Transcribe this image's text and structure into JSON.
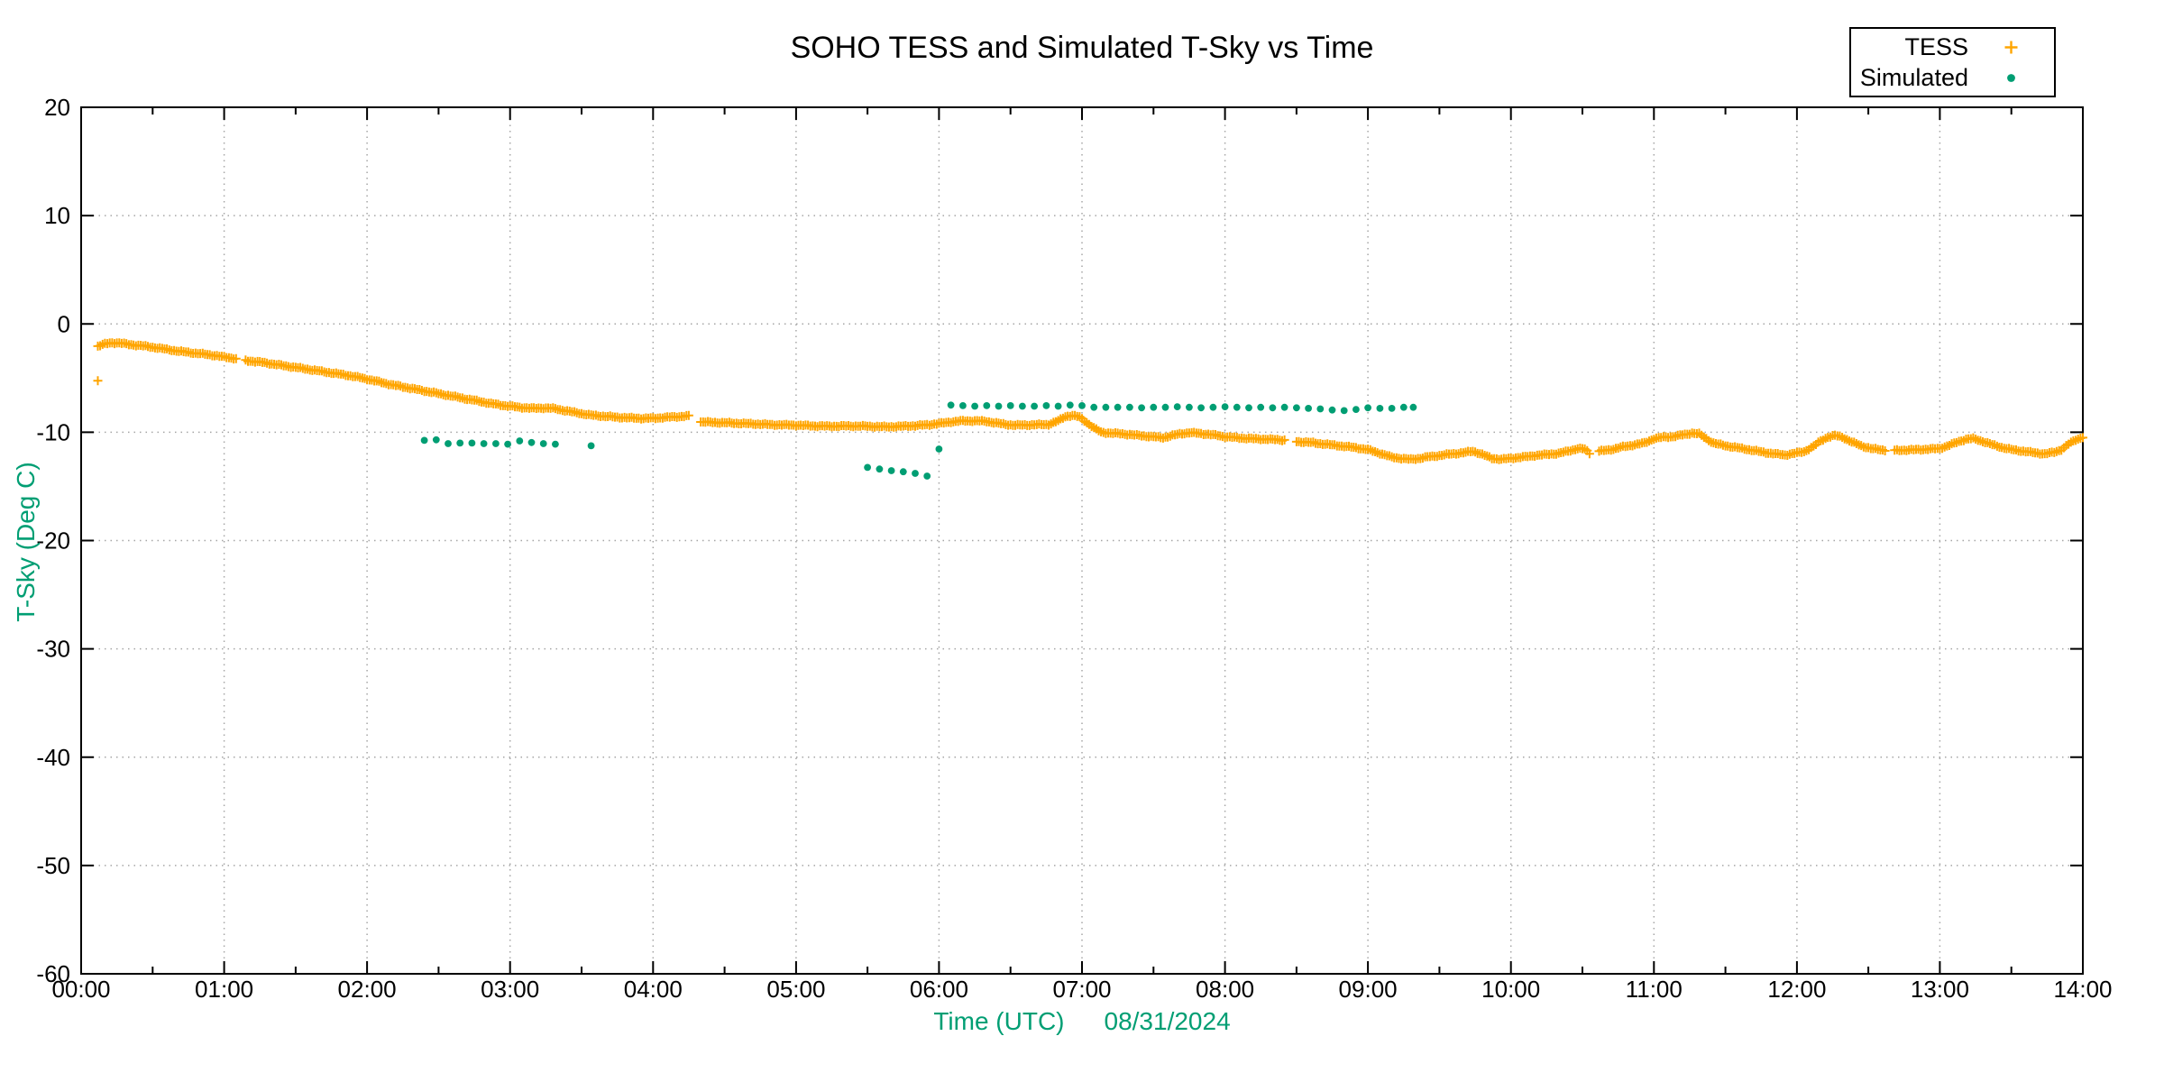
{
  "title": "SOHO TESS and Simulated T-Sky vs Time",
  "legend": {
    "entries": [
      {
        "label": "TESS",
        "marker": "plus-icon",
        "color": "#FFA500"
      },
      {
        "label": "Simulated",
        "marker": "dot-icon",
        "color": "#009E73"
      }
    ]
  },
  "colors": {
    "tess": "#FFA500",
    "simulated": "#009E73",
    "axis": "#000000",
    "grid": "#A6A6A6",
    "green_labels": "#009E73",
    "background": "#FFFFFF"
  },
  "chart_data": {
    "type": "scatter",
    "title": "SOHO TESS and Simulated T-Sky vs Time",
    "xlabel": "Time (UTC)",
    "date_annotation": "08/31/2024",
    "ylabel": "T-Sky (Deg C)",
    "grid": "dotted",
    "legend_position": "top-right-outside",
    "x_axis": {
      "unit": "hours",
      "min_hours": 0,
      "max_hours": 14,
      "major_tick_hours": 1,
      "minor_tick_minutes": 30,
      "tick_labels": [
        "00:00",
        "01:00",
        "02:00",
        "03:00",
        "04:00",
        "05:00",
        "06:00",
        "07:00",
        "08:00",
        "09:00",
        "10:00",
        "11:00",
        "12:00",
        "13:00",
        "14:00"
      ]
    },
    "y_axis": {
      "min": -60,
      "max": 20,
      "major_tick_step": 10,
      "tick_labels": [
        "20",
        "10",
        "0",
        "-10",
        "-20",
        "-30",
        "-40",
        "-50",
        "-60"
      ]
    },
    "series": [
      {
        "name": "TESS",
        "marker": "plus",
        "color": "#FFA500",
        "cadence_minutes": 1,
        "scatter_amplitude_degC": 0.07,
        "start_minute": 7,
        "end_minute": 840,
        "outlier_points_min_degC": [
          [
            7,
            -5.25
          ]
        ],
        "gaps_minutes": [
          [
            66,
            68
          ],
          [
            256,
            259
          ],
          [
            506,
            509
          ],
          [
            634,
            636
          ],
          [
            758,
            760
          ]
        ],
        "anchors_min_degC": [
          [
            7,
            -2.05
          ],
          [
            10,
            -1.85
          ],
          [
            13,
            -1.75
          ],
          [
            16,
            -1.75
          ],
          [
            20,
            -1.9
          ],
          [
            25,
            -2.0
          ],
          [
            30,
            -2.15
          ],
          [
            36,
            -2.35
          ],
          [
            42,
            -2.55
          ],
          [
            48,
            -2.7
          ],
          [
            54,
            -2.85
          ],
          [
            60,
            -3.05
          ],
          [
            65,
            -3.2
          ],
          [
            70,
            -3.4
          ],
          [
            76,
            -3.55
          ],
          [
            82,
            -3.75
          ],
          [
            88,
            -3.95
          ],
          [
            94,
            -4.15
          ],
          [
            100,
            -4.35
          ],
          [
            106,
            -4.55
          ],
          [
            112,
            -4.75
          ],
          [
            118,
            -5.0
          ],
          [
            124,
            -5.3
          ],
          [
            130,
            -5.6
          ],
          [
            136,
            -5.85
          ],
          [
            142,
            -6.1
          ],
          [
            148,
            -6.35
          ],
          [
            154,
            -6.6
          ],
          [
            160,
            -6.85
          ],
          [
            166,
            -7.1
          ],
          [
            172,
            -7.35
          ],
          [
            178,
            -7.55
          ],
          [
            184,
            -7.7
          ],
          [
            190,
            -7.8
          ],
          [
            194,
            -7.75
          ],
          [
            198,
            -7.8
          ],
          [
            203,
            -8.0
          ],
          [
            208,
            -8.2
          ],
          [
            213,
            -8.4
          ],
          [
            218,
            -8.5
          ],
          [
            224,
            -8.6
          ],
          [
            230,
            -8.68
          ],
          [
            236,
            -8.72
          ],
          [
            241,
            -8.7
          ],
          [
            246,
            -8.62
          ],
          [
            251,
            -8.55
          ],
          [
            255,
            -8.5
          ],
          [
            260,
            -9.05
          ],
          [
            266,
            -9.1
          ],
          [
            273,
            -9.15
          ],
          [
            281,
            -9.22
          ],
          [
            290,
            -9.3
          ],
          [
            300,
            -9.35
          ],
          [
            308,
            -9.42
          ],
          [
            315,
            -9.45
          ],
          [
            322,
            -9.42
          ],
          [
            330,
            -9.45
          ],
          [
            338,
            -9.5
          ],
          [
            345,
            -9.45
          ],
          [
            351,
            -9.38
          ],
          [
            356,
            -9.3
          ],
          [
            360,
            -9.2
          ],
          [
            365,
            -9.05
          ],
          [
            370,
            -8.95
          ],
          [
            376,
            -8.95
          ],
          [
            380,
            -9.0
          ],
          [
            384,
            -9.15
          ],
          [
            388,
            -9.28
          ],
          [
            392,
            -9.35
          ],
          [
            397,
            -9.33
          ],
          [
            402,
            -9.3
          ],
          [
            406,
            -9.28
          ],
          [
            410,
            -8.95
          ],
          [
            413,
            -8.55
          ],
          [
            416,
            -8.45
          ],
          [
            419,
            -8.6
          ],
          [
            422,
            -9.1
          ],
          [
            425,
            -9.6
          ],
          [
            428,
            -10.0
          ],
          [
            432,
            -10.08
          ],
          [
            437,
            -10.15
          ],
          [
            443,
            -10.28
          ],
          [
            449,
            -10.4
          ],
          [
            454,
            -10.5
          ],
          [
            457,
            -10.35
          ],
          [
            461,
            -10.15
          ],
          [
            465,
            -10.05
          ],
          [
            469,
            -10.1
          ],
          [
            473,
            -10.2
          ],
          [
            477,
            -10.3
          ],
          [
            480,
            -10.42
          ],
          [
            486,
            -10.52
          ],
          [
            492,
            -10.6
          ],
          [
            498,
            -10.65
          ],
          [
            505,
            -10.72
          ],
          [
            510,
            -10.85
          ],
          [
            516,
            -10.95
          ],
          [
            522,
            -11.1
          ],
          [
            528,
            -11.25
          ],
          [
            534,
            -11.4
          ],
          [
            540,
            -11.6
          ],
          [
            545,
            -11.95
          ],
          [
            550,
            -12.3
          ],
          [
            555,
            -12.45
          ],
          [
            558,
            -12.5
          ],
          [
            562,
            -12.4
          ],
          [
            566,
            -12.25
          ],
          [
            570,
            -12.15
          ],
          [
            575,
            -12.0
          ],
          [
            580,
            -11.9
          ],
          [
            584,
            -11.75
          ],
          [
            588,
            -12.05
          ],
          [
            592,
            -12.4
          ],
          [
            596,
            -12.5
          ],
          [
            600,
            -12.4
          ],
          [
            605,
            -12.3
          ],
          [
            610,
            -12.15
          ],
          [
            615,
            -12.05
          ],
          [
            620,
            -11.95
          ],
          [
            625,
            -11.7
          ],
          [
            628,
            -11.5
          ],
          [
            631,
            -11.55
          ],
          [
            633,
            -11.95
          ],
          [
            637,
            -11.75
          ],
          [
            642,
            -11.6
          ],
          [
            647,
            -11.35
          ],
          [
            652,
            -11.15
          ],
          [
            656,
            -11.0
          ],
          [
            660,
            -10.6
          ],
          [
            664,
            -10.45
          ],
          [
            668,
            -10.4
          ],
          [
            672,
            -10.25
          ],
          [
            676,
            -10.08
          ],
          [
            679,
            -10.15
          ],
          [
            682,
            -10.6
          ],
          [
            685,
            -11.0
          ],
          [
            689,
            -11.2
          ],
          [
            693,
            -11.35
          ],
          [
            697,
            -11.5
          ],
          [
            701,
            -11.65
          ],
          [
            706,
            -11.85
          ],
          [
            711,
            -12.0
          ],
          [
            715,
            -12.1
          ],
          [
            719,
            -11.95
          ],
          [
            723,
            -11.8
          ],
          [
            727,
            -11.3
          ],
          [
            730,
            -10.8
          ],
          [
            733,
            -10.45
          ],
          [
            736,
            -10.3
          ],
          [
            739,
            -10.45
          ],
          [
            743,
            -10.9
          ],
          [
            747,
            -11.25
          ],
          [
            751,
            -11.5
          ],
          [
            755,
            -11.62
          ],
          [
            759,
            -11.7
          ],
          [
            764,
            -11.65
          ],
          [
            770,
            -11.62
          ],
          [
            776,
            -11.55
          ],
          [
            780,
            -11.5
          ],
          [
            784,
            -11.2
          ],
          [
            788,
            -10.85
          ],
          [
            791,
            -10.65
          ],
          [
            794,
            -10.58
          ],
          [
            798,
            -10.85
          ],
          [
            802,
            -11.15
          ],
          [
            806,
            -11.4
          ],
          [
            810,
            -11.6
          ],
          [
            815,
            -11.75
          ],
          [
            820,
            -11.9
          ],
          [
            824,
            -12.0
          ],
          [
            828,
            -11.85
          ],
          [
            831,
            -11.6
          ],
          [
            834,
            -11.1
          ],
          [
            837,
            -10.7
          ],
          [
            840,
            -10.45
          ]
        ]
      },
      {
        "name": "Simulated",
        "marker": "filled-circle",
        "color": "#009E73",
        "cadence_minutes": 5,
        "points_min_degC": [
          [
            144,
            -10.75
          ],
          [
            149,
            -10.7
          ],
          [
            154,
            -11.05
          ],
          [
            159,
            -11.0
          ],
          [
            164,
            -11.0
          ],
          [
            169,
            -11.05
          ],
          [
            174,
            -11.05
          ],
          [
            179,
            -11.1
          ],
          [
            184,
            -10.8
          ],
          [
            189,
            -10.95
          ],
          [
            194,
            -11.05
          ],
          [
            199,
            -11.1
          ],
          [
            214,
            -11.25
          ],
          [
            330,
            -13.25
          ],
          [
            335,
            -13.4
          ],
          [
            340,
            -13.55
          ],
          [
            345,
            -13.65
          ],
          [
            350,
            -13.8
          ],
          [
            355,
            -14.05
          ],
          [
            360,
            -11.55
          ],
          [
            365,
            -7.5
          ],
          [
            370,
            -7.55
          ],
          [
            375,
            -7.6
          ],
          [
            380,
            -7.55
          ],
          [
            385,
            -7.6
          ],
          [
            390,
            -7.55
          ],
          [
            395,
            -7.6
          ],
          [
            400,
            -7.6
          ],
          [
            405,
            -7.55
          ],
          [
            410,
            -7.6
          ],
          [
            415,
            -7.5
          ],
          [
            420,
            -7.55
          ],
          [
            425,
            -7.7
          ],
          [
            430,
            -7.7
          ],
          [
            435,
            -7.7
          ],
          [
            440,
            -7.7
          ],
          [
            445,
            -7.75
          ],
          [
            450,
            -7.7
          ],
          [
            455,
            -7.7
          ],
          [
            460,
            -7.65
          ],
          [
            465,
            -7.7
          ],
          [
            470,
            -7.75
          ],
          [
            475,
            -7.7
          ],
          [
            480,
            -7.65
          ],
          [
            485,
            -7.7
          ],
          [
            490,
            -7.75
          ],
          [
            495,
            -7.7
          ],
          [
            500,
            -7.75
          ],
          [
            505,
            -7.7
          ],
          [
            510,
            -7.75
          ],
          [
            515,
            -7.8
          ],
          [
            520,
            -7.85
          ],
          [
            525,
            -7.95
          ],
          [
            530,
            -8.0
          ],
          [
            535,
            -7.9
          ],
          [
            540,
            -7.75
          ],
          [
            545,
            -7.8
          ],
          [
            550,
            -7.8
          ],
          [
            555,
            -7.7
          ],
          [
            559,
            -7.7
          ]
        ]
      }
    ]
  }
}
